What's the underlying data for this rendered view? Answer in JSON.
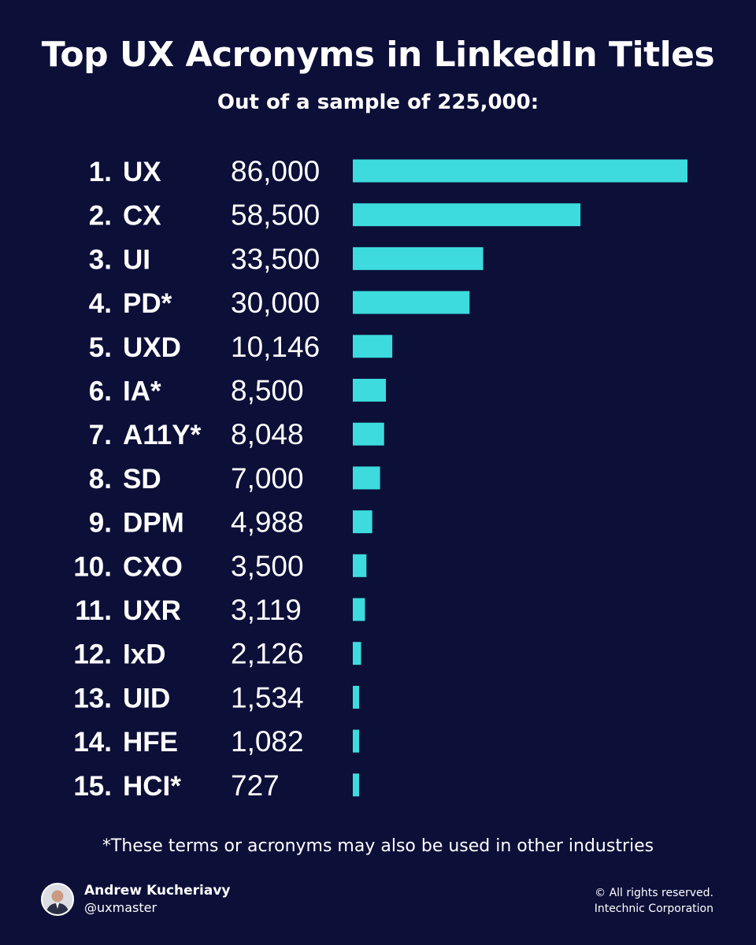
{
  "header": {
    "title": "Top UX Acronyms in LinkedIn Titles",
    "subtitle": "Out of a sample of 225,000:"
  },
  "chart_data": {
    "type": "bar",
    "orientation": "horizontal",
    "title": "Top UX Acronyms in LinkedIn Titles",
    "subtitle": "Out of a sample of 225,000:",
    "bar_color": "#3ddbdd",
    "xlim": [
      0,
      86000
    ],
    "rows": [
      {
        "rank": "1.",
        "acronym": "UX",
        "label": "86,000",
        "value": 86000
      },
      {
        "rank": "2.",
        "acronym": "CX",
        "label": "58,500",
        "value": 58500
      },
      {
        "rank": "3.",
        "acronym": "UI",
        "label": "33,500",
        "value": 33500
      },
      {
        "rank": "4.",
        "acronym": "PD*",
        "label": "30,000",
        "value": 30000
      },
      {
        "rank": "5.",
        "acronym": "UXD",
        "label": "10,146",
        "value": 10146
      },
      {
        "rank": "6.",
        "acronym": "IA*",
        "label": "8,500",
        "value": 8500
      },
      {
        "rank": "7.",
        "acronym": "A11Y*",
        "label": "8,048",
        "value": 8048
      },
      {
        "rank": "8.",
        "acronym": "SD",
        "label": "7,000",
        "value": 7000
      },
      {
        "rank": "9.",
        "acronym": "DPM",
        "label": "4,988",
        "value": 4988
      },
      {
        "rank": "10.",
        "acronym": "CXO",
        "label": "3,500",
        "value": 3500
      },
      {
        "rank": "11.",
        "acronym": "UXR",
        "label": "3,119",
        "value": 3119
      },
      {
        "rank": "12.",
        "acronym": "IxD",
        "label": "2,126",
        "value": 2126
      },
      {
        "rank": "13.",
        "acronym": "UID",
        "label": "1,534",
        "value": 1534
      },
      {
        "rank": "14.",
        "acronym": "HFE",
        "label": "1,082",
        "value": 1082
      },
      {
        "rank": "15.",
        "acronym": "HCI*",
        "label": "727",
        "value": 727
      }
    ]
  },
  "footnote": "*These terms or acronyms may also be used in other industries",
  "author": {
    "name": "Andrew Kucheriavy",
    "handle": "@uxmaster"
  },
  "copyright": {
    "line1": "© All rights reserved.",
    "line2": "Intechnic Corporation"
  },
  "colors": {
    "background": "#0c0f38",
    "bar": "#3ddbdd",
    "text": "#ffffff"
  }
}
